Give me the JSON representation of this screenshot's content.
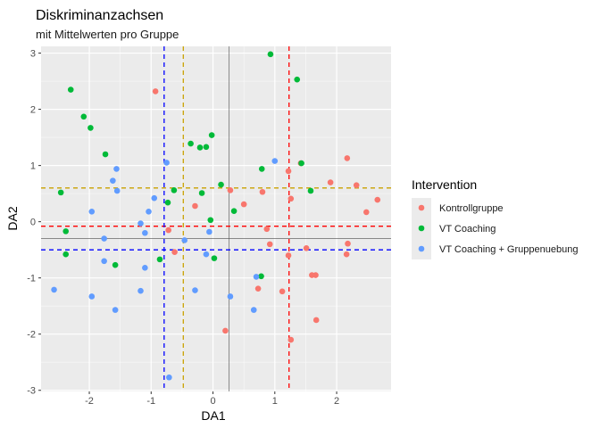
{
  "chart_data": {
    "type": "scatter",
    "title": "Diskriminanzachsen",
    "subtitle": "mit Mittelwerten pro Gruppe",
    "xlabel": "DA1",
    "ylabel": "DA2",
    "xlim": [
      -2.78,
      2.88
    ],
    "ylim": [
      -3.02,
      3.12
    ],
    "x_ticks": [
      -2,
      -1,
      0,
      1,
      2
    ],
    "y_ticks": [
      -3,
      -2,
      -1,
      0,
      1,
      2,
      3
    ],
    "grid": true,
    "legend": {
      "title": "Intervention",
      "placement": "right"
    },
    "reference_lines": {
      "x": 0.26,
      "y": -0.3,
      "color": "#4d4d4d"
    },
    "series": [
      {
        "name": "Kontrollgruppe",
        "color": "#F8766D",
        "mean": {
          "x": 1.23,
          "y": -0.08
        },
        "points": [
          [
            -0.93,
            2.32
          ],
          [
            0.28,
            0.56
          ],
          [
            0.8,
            0.53
          ],
          [
            1.22,
            0.9
          ],
          [
            1.26,
            0.41
          ],
          [
            1.42,
            1.04
          ],
          [
            1.9,
            0.7
          ],
          [
            2.17,
            1.13
          ],
          [
            2.32,
            0.65
          ],
          [
            2.48,
            0.17
          ],
          [
            2.66,
            0.39
          ],
          [
            0.5,
            0.31
          ],
          [
            -0.29,
            0.28
          ],
          [
            -0.72,
            -0.15
          ],
          [
            -0.62,
            -0.54
          ],
          [
            0.87,
            -0.13
          ],
          [
            0.92,
            -0.4
          ],
          [
            0.73,
            -1.19
          ],
          [
            1.12,
            -1.24
          ],
          [
            1.22,
            -0.6
          ],
          [
            1.51,
            -0.47
          ],
          [
            1.6,
            -0.95
          ],
          [
            1.66,
            -0.95
          ],
          [
            2.16,
            -0.58
          ],
          [
            2.18,
            -0.39
          ],
          [
            0.2,
            -1.94
          ],
          [
            1.26,
            -2.1
          ],
          [
            1.67,
            -1.75
          ]
        ]
      },
      {
        "name": "VT Coaching",
        "color": "#00BA38",
        "mean": {
          "x": -0.48,
          "y": 0.6
        },
        "points": [
          [
            -2.3,
            2.35
          ],
          [
            -2.09,
            1.87
          ],
          [
            -1.98,
            1.67
          ],
          [
            -1.74,
            1.2
          ],
          [
            -2.46,
            0.52
          ],
          [
            -2.38,
            -0.17
          ],
          [
            -2.38,
            -0.58
          ],
          [
            -1.58,
            -0.77
          ],
          [
            -0.86,
            -0.67
          ],
          [
            -0.73,
            0.34
          ],
          [
            -0.63,
            0.56
          ],
          [
            -0.36,
            1.39
          ],
          [
            -0.21,
            1.32
          ],
          [
            -0.11,
            1.33
          ],
          [
            -0.02,
            1.54
          ],
          [
            0.13,
            0.66
          ],
          [
            -0.18,
            0.51
          ],
          [
            0.34,
            0.19
          ],
          [
            -0.04,
            0.03
          ],
          [
            0.02,
            -0.65
          ],
          [
            0.79,
            0.94
          ],
          [
            0.93,
            2.98
          ],
          [
            1.36,
            2.53
          ],
          [
            1.43,
            1.04
          ],
          [
            1.58,
            0.55
          ],
          [
            0.78,
            -0.97
          ]
        ]
      },
      {
        "name": "VT Coaching + Gruppenuebung",
        "color": "#619CFF",
        "mean": {
          "x": -0.79,
          "y": -0.5
        },
        "points": [
          [
            -2.57,
            -1.21
          ],
          [
            -1.96,
            0.18
          ],
          [
            -1.96,
            -1.33
          ],
          [
            -1.76,
            -0.3
          ],
          [
            -1.76,
            -0.7
          ],
          [
            -1.62,
            0.73
          ],
          [
            -1.55,
            0.55
          ],
          [
            -1.56,
            0.94
          ],
          [
            -1.58,
            -1.57
          ],
          [
            -1.17,
            -0.03
          ],
          [
            -1.1,
            -0.2
          ],
          [
            -1.04,
            0.18
          ],
          [
            -0.95,
            0.42
          ],
          [
            -1.17,
            -1.23
          ],
          [
            -1.1,
            -0.82
          ],
          [
            -0.75,
            1.05
          ],
          [
            -0.71,
            -2.77
          ],
          [
            -0.46,
            -0.33
          ],
          [
            -0.29,
            -1.22
          ],
          [
            -0.11,
            -0.58
          ],
          [
            -0.06,
            -0.18
          ],
          [
            0.28,
            -1.33
          ],
          [
            0.66,
            -1.57
          ],
          [
            0.7,
            -0.98
          ],
          [
            1.0,
            1.08
          ]
        ]
      }
    ]
  }
}
